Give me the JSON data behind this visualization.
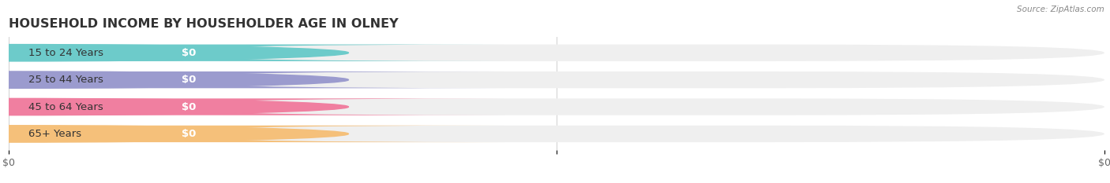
{
  "title": "HOUSEHOLD INCOME BY HOUSEHOLDER AGE IN OLNEY",
  "source": "Source: ZipAtlas.com",
  "categories": [
    "15 to 24 Years",
    "25 to 44 Years",
    "45 to 64 Years",
    "65+ Years"
  ],
  "values": [
    0,
    0,
    0,
    0
  ],
  "bar_colors": [
    "#6dcbca",
    "#9b9bce",
    "#f07fa0",
    "#f5c07a"
  ],
  "bar_bg_color": "#efefef",
  "label_bg_color": "#ffffff",
  "background_color": "#ffffff",
  "title_fontsize": 11.5,
  "tick_fontsize": 9,
  "label_fontsize": 9.5
}
